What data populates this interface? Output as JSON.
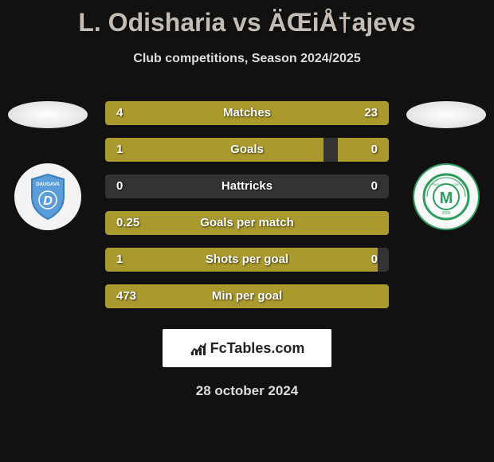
{
  "header": {
    "title": "L. Odisharia vs ÄŒiÅ†ajevs",
    "subtitle": "Club competitions, Season 2024/2025"
  },
  "colors": {
    "background": "#111111",
    "bar_fill": "#aa9a2e",
    "bar_empty": "#333333",
    "title_color": "#c5bcb4",
    "text_color": "#ffffff"
  },
  "left_club": {
    "name": "Daugava",
    "shield_color": "#5a9dd8",
    "shield_border": "#3a7db8"
  },
  "right_club": {
    "name": "Futbola Skola Metta",
    "circle_outer": "#2d9d5c",
    "circle_inner": "#ffffff",
    "m_color": "#2d9d5c"
  },
  "stats": [
    {
      "label": "Matches",
      "left_val": "4",
      "right_val": "23",
      "left_pct": 14.8,
      "right_pct": 85.2
    },
    {
      "label": "Goals",
      "left_val": "1",
      "right_val": "0",
      "left_pct": 77.0,
      "right_pct": 18.0
    },
    {
      "label": "Hattricks",
      "left_val": "0",
      "right_val": "0",
      "left_pct": 0,
      "right_pct": 0
    },
    {
      "label": "Goals per match",
      "left_val": "0.25",
      "right_val": "",
      "left_pct": 100,
      "right_pct": 0
    },
    {
      "label": "Shots per goal",
      "left_val": "1",
      "right_val": "0",
      "left_pct": 96.0,
      "right_pct": 0
    },
    {
      "label": "Min per goal",
      "left_val": "473",
      "right_val": "",
      "left_pct": 100,
      "right_pct": 0
    }
  ],
  "footer": {
    "brand": "FcTables.com",
    "date": "28 october 2024"
  }
}
